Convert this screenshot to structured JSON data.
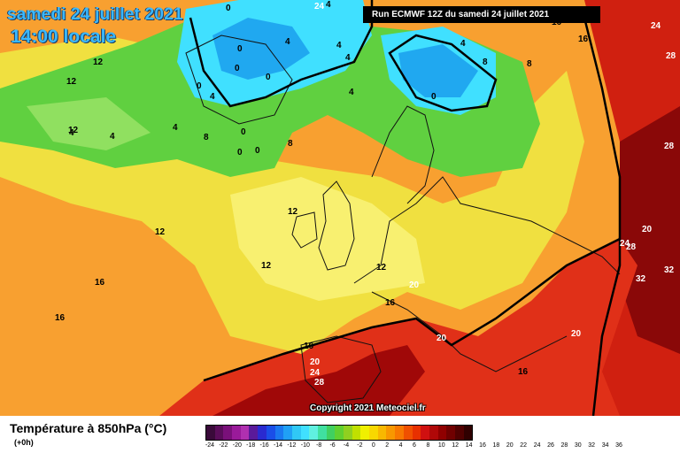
{
  "header": {
    "date_line": "samedi 24 juillet 2021",
    "time_line": "14:00 locale",
    "run_info": "Run ECMWF 12Z du samedi 24 juillet 2021"
  },
  "map": {
    "copyright": "Copyright 2021 Meteociel.fr",
    "contour_labels": [
      "0",
      "0",
      "0",
      "0",
      "0",
      "0",
      "0",
      "0",
      "0",
      "4",
      "4",
      "4",
      "4",
      "4",
      "4",
      "4",
      "4",
      "4",
      "4",
      "8",
      "8",
      "8",
      "8",
      "12",
      "12",
      "12",
      "12",
      "12",
      "12",
      "12",
      "16",
      "16",
      "16",
      "16",
      "16",
      "16",
      "16",
      "16",
      "20",
      "20",
      "20",
      "20",
      "20",
      "24",
      "24",
      "24",
      "24",
      "28",
      "28",
      "28",
      "28",
      "32",
      "32"
    ]
  },
  "legend": {
    "variable_title": "Température à 850hPa (°C)",
    "lead_time": "(+0h)",
    "scale_labels": [
      "-24",
      "-22",
      "-20",
      "-18",
      "-16",
      "-14",
      "-12",
      "-10",
      "-8",
      "-6",
      "-4",
      "-2",
      "0",
      "2",
      "4",
      "6",
      "8",
      "10",
      "12",
      "14",
      "16",
      "18",
      "20",
      "22",
      "24",
      "26",
      "28",
      "30",
      "32",
      "34",
      "36"
    ],
    "scale_colors": [
      "#3a0a3a",
      "#5a0d5a",
      "#7a107a",
      "#9a1a9a",
      "#b030b0",
      "#5a1a9a",
      "#2a2ad0",
      "#1a4ee8",
      "#1a78f0",
      "#20a0f5",
      "#30c8f5",
      "#40e0ff",
      "#60f0e0",
      "#40e0a0",
      "#40d060",
      "#60d030",
      "#90d020",
      "#c0e000",
      "#f0f000",
      "#f8d800",
      "#f8b800",
      "#f89800",
      "#f87800",
      "#f05000",
      "#e83000",
      "#d01010",
      "#b00808",
      "#900000",
      "#700000",
      "#500000",
      "#300000"
    ]
  }
}
